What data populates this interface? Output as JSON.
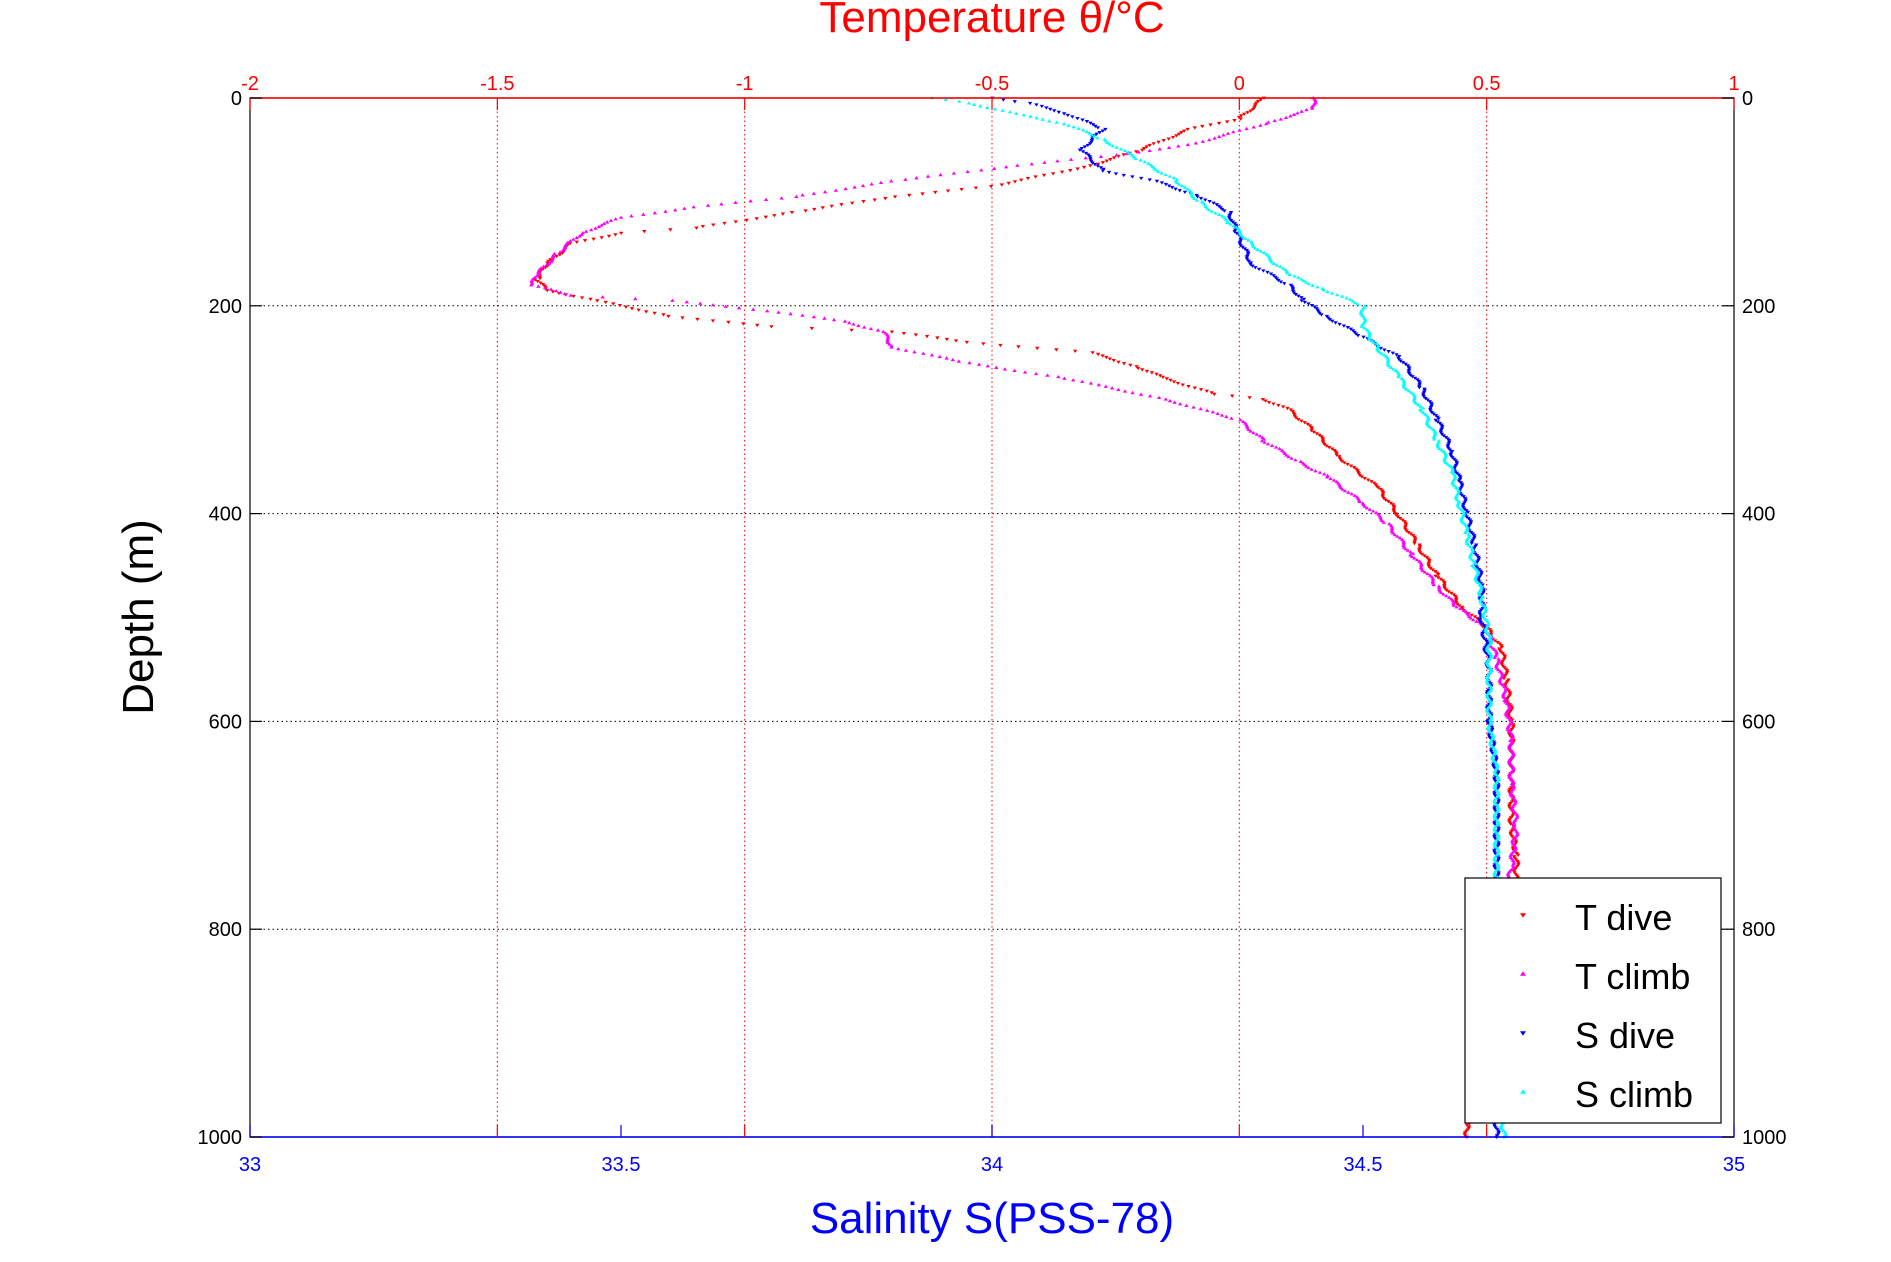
{
  "chart_data": {
    "type": "scatter",
    "title": "",
    "top_axis": {
      "label": "Temperature θ/°C",
      "range": [
        -2,
        1
      ],
      "ticks": [
        -2,
        -1.5,
        -1,
        -0.5,
        0,
        0.5,
        1
      ],
      "tick_labels": [
        "-2",
        "-1.5",
        "-1",
        "-0.5",
        "0",
        "0.5",
        "1"
      ],
      "color": "#ff0000",
      "grid": true
    },
    "bottom_axis": {
      "label": "Salinity S(PSS-78)",
      "range": [
        33,
        35
      ],
      "ticks": [
        33,
        33.5,
        34,
        34.5,
        35
      ],
      "tick_labels": [
        "33",
        "33.5",
        "34",
        "34.5",
        "35"
      ],
      "color": "#0000ff"
    },
    "y_axis": {
      "label": "Depth (m)",
      "range": [
        0,
        1000
      ],
      "reversed": true,
      "ticks": [
        0,
        200,
        400,
        600,
        800,
        1000
      ],
      "tick_labels": [
        "0",
        "200",
        "400",
        "600",
        "800",
        "1000"
      ],
      "color": "#000000",
      "grid": true
    },
    "legend": {
      "position": "bottom-right",
      "entries": [
        "T dive",
        "T climb",
        "S dive",
        "S climb"
      ]
    },
    "series": [
      {
        "name": "T dive",
        "axis": "top",
        "color": "#ff0000",
        "marker": "triangle-down",
        "points": [
          [
            0.05,
            0
          ],
          [
            0.0,
            20
          ],
          [
            -0.1,
            30
          ],
          [
            -0.2,
            50
          ],
          [
            -0.3,
            65
          ],
          [
            -0.5,
            85
          ],
          [
            -0.7,
            95
          ],
          [
            -0.9,
            110
          ],
          [
            -1.1,
            125
          ],
          [
            -1.25,
            130
          ],
          [
            -1.35,
            140
          ],
          [
            -1.4,
            160
          ],
          [
            -1.42,
            175
          ],
          [
            -1.4,
            185
          ],
          [
            -1.3,
            195
          ],
          [
            -1.15,
            210
          ],
          [
            -0.95,
            220
          ],
          [
            -0.7,
            225
          ],
          [
            -0.55,
            235
          ],
          [
            -0.3,
            245
          ],
          [
            -0.2,
            260
          ],
          [
            -0.15,
            270
          ],
          [
            -0.05,
            285
          ],
          [
            0.05,
            290
          ],
          [
            0.1,
            300
          ],
          [
            0.15,
            320
          ],
          [
            0.2,
            345
          ],
          [
            0.28,
            375
          ],
          [
            0.32,
            400
          ],
          [
            0.36,
            430
          ],
          [
            0.4,
            460
          ],
          [
            0.45,
            490
          ],
          [
            0.5,
            510
          ],
          [
            0.53,
            530
          ],
          [
            0.54,
            560
          ],
          [
            0.55,
            600
          ],
          [
            0.55,
            650
          ],
          [
            0.55,
            700
          ],
          [
            0.56,
            730
          ],
          [
            0.56,
            750
          ],
          [
            0.55,
            770
          ],
          [
            0.48,
            975
          ],
          [
            0.46,
            990
          ],
          [
            0.46,
            1000
          ]
        ]
      },
      {
        "name": "T climb",
        "axis": "top",
        "color": "#ff00ff",
        "marker": "triangle-up",
        "points": [
          [
            0.15,
            0
          ],
          [
            0.15,
            10
          ],
          [
            0.05,
            25
          ],
          [
            -0.1,
            45
          ],
          [
            -0.25,
            55
          ],
          [
            -0.45,
            65
          ],
          [
            -0.7,
            80
          ],
          [
            -0.9,
            95
          ],
          [
            -1.1,
            105
          ],
          [
            -1.25,
            115
          ],
          [
            -1.33,
            130
          ],
          [
            -1.38,
            150
          ],
          [
            -1.42,
            170
          ],
          [
            -1.43,
            180
          ],
          [
            -1.35,
            190
          ],
          [
            -1.15,
            195
          ],
          [
            -0.95,
            205
          ],
          [
            -0.8,
            215
          ],
          [
            -0.72,
            225
          ],
          [
            -0.7,
            240
          ],
          [
            -0.55,
            255
          ],
          [
            -0.35,
            270
          ],
          [
            -0.15,
            290
          ],
          [
            0.0,
            310
          ],
          [
            0.05,
            330
          ],
          [
            0.12,
            350
          ],
          [
            0.18,
            365
          ],
          [
            0.25,
            390
          ],
          [
            0.3,
            410
          ],
          [
            0.35,
            440
          ],
          [
            0.4,
            470
          ],
          [
            0.44,
            490
          ],
          [
            0.5,
            510
          ],
          [
            0.52,
            540
          ],
          [
            0.54,
            580
          ],
          [
            0.55,
            620
          ],
          [
            0.55,
            660
          ],
          [
            0.56,
            700
          ],
          [
            0.55,
            740
          ],
          [
            0.54,
            770
          ]
        ]
      },
      {
        "name": "S dive",
        "axis": "bottom",
        "color": "#0000ff",
        "marker": "triangle-down",
        "points": [
          [
            34.0,
            0
          ],
          [
            34.05,
            5
          ],
          [
            34.1,
            15
          ],
          [
            34.15,
            30
          ],
          [
            34.12,
            50
          ],
          [
            34.15,
            70
          ],
          [
            34.22,
            80
          ],
          [
            34.28,
            95
          ],
          [
            34.32,
            110
          ],
          [
            34.33,
            130
          ],
          [
            34.35,
            160
          ],
          [
            34.4,
            180
          ],
          [
            34.42,
            195
          ],
          [
            34.45,
            210
          ],
          [
            34.5,
            230
          ],
          [
            34.55,
            250
          ],
          [
            34.58,
            280
          ],
          [
            34.6,
            310
          ],
          [
            34.62,
            340
          ],
          [
            34.63,
            370
          ],
          [
            34.64,
            400
          ],
          [
            34.65,
            430
          ],
          [
            34.66,
            470
          ],
          [
            34.66,
            500
          ],
          [
            34.67,
            550
          ],
          [
            34.67,
            600
          ],
          [
            34.68,
            650
          ],
          [
            34.68,
            700
          ],
          [
            34.68,
            750
          ],
          [
            34.68,
            800
          ],
          [
            34.68,
            850
          ],
          [
            34.68,
            900
          ],
          [
            34.68,
            950
          ],
          [
            34.68,
            1000
          ]
        ]
      },
      {
        "name": "S climb",
        "axis": "bottom",
        "color": "#00ffff",
        "marker": "triangle-up",
        "points": [
          [
            33.92,
            0
          ],
          [
            33.97,
            5
          ],
          [
            34.03,
            15
          ],
          [
            34.1,
            25
          ],
          [
            34.15,
            40
          ],
          [
            34.2,
            60
          ],
          [
            34.25,
            80
          ],
          [
            34.28,
            100
          ],
          [
            34.32,
            120
          ],
          [
            34.35,
            140
          ],
          [
            34.4,
            170
          ],
          [
            34.45,
            185
          ],
          [
            34.5,
            200
          ],
          [
            34.5,
            220
          ],
          [
            34.52,
            240
          ],
          [
            34.55,
            270
          ],
          [
            34.58,
            300
          ],
          [
            34.6,
            330
          ],
          [
            34.62,
            360
          ],
          [
            34.63,
            390
          ],
          [
            34.64,
            420
          ],
          [
            34.65,
            450
          ],
          [
            34.66,
            480
          ],
          [
            34.67,
            520
          ],
          [
            34.67,
            560
          ],
          [
            34.67,
            600
          ],
          [
            34.68,
            650
          ],
          [
            34.68,
            700
          ],
          [
            34.68,
            750
          ],
          [
            34.68,
            800
          ],
          [
            34.68,
            900
          ],
          [
            34.69,
            1000
          ]
        ]
      }
    ]
  }
}
